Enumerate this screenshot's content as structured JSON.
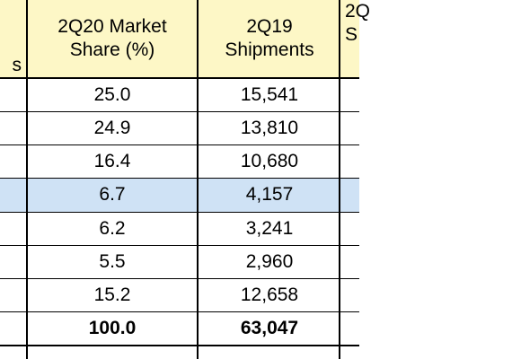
{
  "colors": {
    "header_bg": "#fdf7c6",
    "highlight_bg": "#cfe2f5",
    "row_bg": "#ffffff",
    "grid": "#000000"
  },
  "header": {
    "col0": [
      "s"
    ],
    "col1": [
      "2Q20 Market",
      "Share (%)"
    ],
    "col2": [
      "2Q19",
      "Shipments"
    ],
    "col3": [
      "2Q",
      "S"
    ]
  },
  "rows": [
    {
      "share": "25.0",
      "shipments": "15,541",
      "highlight": false,
      "bold": false
    },
    {
      "share": "24.9",
      "shipments": "13,810",
      "highlight": false,
      "bold": false
    },
    {
      "share": "16.4",
      "shipments": "10,680",
      "highlight": false,
      "bold": false
    },
    {
      "share": "6.7",
      "shipments": "4,157",
      "highlight": true,
      "bold": false
    },
    {
      "share": "6.2",
      "shipments": "3,241",
      "highlight": false,
      "bold": false
    },
    {
      "share": "5.5",
      "shipments": "2,960",
      "highlight": false,
      "bold": false
    },
    {
      "share": "15.2",
      "shipments": "12,658",
      "highlight": false,
      "bold": false
    },
    {
      "share": "100.0",
      "shipments": "63,047",
      "highlight": false,
      "bold": true
    }
  ]
}
